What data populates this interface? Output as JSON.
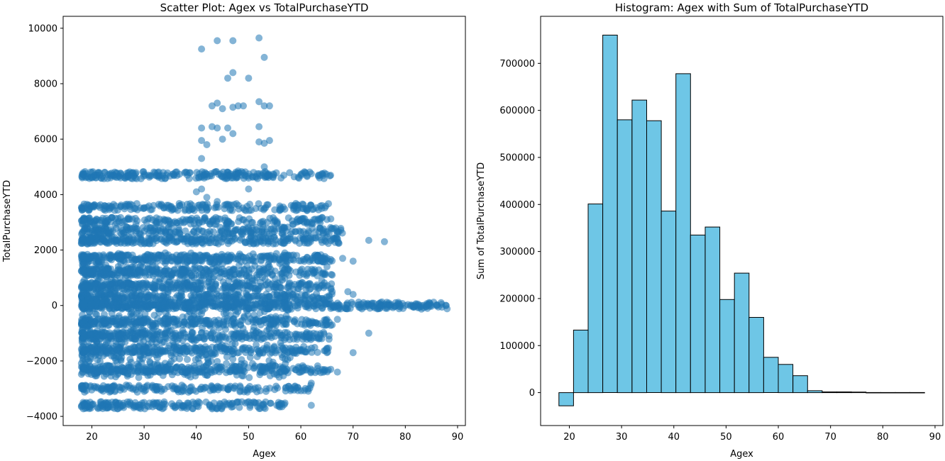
{
  "chart_data": [
    {
      "type": "scatter",
      "title": "Scatter Plot: Agex vs TotalPurchaseYTD",
      "xlabel": "Agex",
      "ylabel": "TotalPurchaseYTD",
      "xlim": [
        14.5,
        91.5
      ],
      "ylim": [
        -4330,
        10430
      ],
      "xticks": [
        20,
        30,
        40,
        50,
        60,
        70,
        80,
        90
      ],
      "yticks": [
        -4000,
        -2000,
        0,
        2000,
        4000,
        6000,
        8000,
        10000
      ],
      "marker_color": "#1f77b4",
      "marker_alpha": 0.55,
      "bands": [
        {
          "x0": 18,
          "x1": 66,
          "y": 4700,
          "density": 1.0
        },
        {
          "x0": 18,
          "x1": 66,
          "y": 3550,
          "density": 0.8
        },
        {
          "x0": 18,
          "x1": 66,
          "y": 3050,
          "density": 0.8
        },
        {
          "x0": 18,
          "x1": 68,
          "y": 2700,
          "density": 0.9
        },
        {
          "x0": 18,
          "x1": 68,
          "y": 2350,
          "density": 1.2
        },
        {
          "x0": 18,
          "x1": 66,
          "y": 1700,
          "density": 1.1
        },
        {
          "x0": 18,
          "x1": 66,
          "y": 1200,
          "density": 1.0
        },
        {
          "x0": 18,
          "x1": 66,
          "y": 700,
          "density": 1.0
        },
        {
          "x0": 18,
          "x1": 66,
          "y": 300,
          "density": 1.0
        },
        {
          "x0": 18,
          "x1": 88,
          "y": 0,
          "density": 1.4
        },
        {
          "x0": 18,
          "x1": 66,
          "y": -600,
          "density": 1.0
        },
        {
          "x0": 18,
          "x1": 66,
          "y": -1100,
          "density": 1.0
        },
        {
          "x0": 18,
          "x1": 66,
          "y": -1600,
          "density": 1.0
        },
        {
          "x0": 18,
          "x1": 66,
          "y": -2300,
          "density": 1.1
        },
        {
          "x0": 18,
          "x1": 62,
          "y": -3000,
          "density": 0.8
        },
        {
          "x0": 18,
          "x1": 57,
          "y": -3600,
          "density": 1.0
        }
      ],
      "points": [
        [
          41,
          9250
        ],
        [
          44,
          9550
        ],
        [
          47,
          9550
        ],
        [
          52,
          9650
        ],
        [
          53,
          8950
        ],
        [
          47,
          8400
        ],
        [
          46,
          8200
        ],
        [
          50,
          8200
        ],
        [
          43,
          7200
        ],
        [
          44,
          7300
        ],
        [
          45,
          7100
        ],
        [
          47,
          7150
        ],
        [
          48,
          7200
        ],
        [
          49,
          7200
        ],
        [
          52,
          7350
        ],
        [
          53,
          7200
        ],
        [
          54,
          7200
        ],
        [
          41,
          6400
        ],
        [
          43,
          6450
        ],
        [
          44,
          6400
        ],
        [
          46,
          6400
        ],
        [
          47,
          6200
        ],
        [
          52,
          6450
        ],
        [
          52,
          5900
        ],
        [
          53,
          5850
        ],
        [
          54,
          5950
        ],
        [
          41,
          5950
        ],
        [
          42,
          5800
        ],
        [
          45,
          6000
        ],
        [
          41,
          5300
        ],
        [
          47,
          4600
        ],
        [
          48,
          4850
        ],
        [
          50,
          4200
        ],
        [
          53,
          5000
        ],
        [
          40,
          4100
        ],
        [
          41,
          4200
        ],
        [
          42,
          3900
        ],
        [
          44,
          3750
        ],
        [
          62,
          4750
        ],
        [
          64,
          3500
        ],
        [
          55,
          3450
        ],
        [
          65,
          3100
        ],
        [
          67,
          2400
        ],
        [
          73,
          2350
        ],
        [
          76,
          2300
        ],
        [
          68,
          1700
        ],
        [
          70,
          1600
        ],
        [
          65,
          1400
        ],
        [
          66,
          1100
        ],
        [
          64,
          900
        ],
        [
          69,
          500
        ],
        [
          70,
          400
        ],
        [
          66,
          500
        ],
        [
          72,
          100
        ],
        [
          74,
          80
        ],
        [
          75,
          60
        ],
        [
          77,
          20
        ],
        [
          79,
          10
        ],
        [
          80,
          0
        ],
        [
          82,
          30
        ],
        [
          83,
          0
        ],
        [
          84,
          -40
        ],
        [
          85,
          -30
        ],
        [
          86,
          20
        ],
        [
          87,
          -60
        ],
        [
          88,
          -120
        ],
        [
          78,
          -30
        ],
        [
          81,
          -20
        ],
        [
          65,
          -500
        ],
        [
          67,
          -500
        ],
        [
          66,
          -700
        ],
        [
          73,
          -1000
        ],
        [
          64,
          -1200
        ],
        [
          65,
          -1700
        ],
        [
          70,
          -1700
        ],
        [
          62,
          -2800
        ],
        [
          67,
          -2400
        ],
        [
          62,
          -3600
        ]
      ]
    },
    {
      "type": "bar",
      "title": "Histogram: Agex with Sum of TotalPurchaseYTD",
      "xlabel": "Agex",
      "ylabel": "Sum of TotalPurchaseYTD",
      "xlim": [
        14.5,
        91.5
      ],
      "ylim": [
        -70000,
        800000
      ],
      "xticks": [
        20,
        30,
        40,
        50,
        60,
        70,
        80,
        90
      ],
      "yticks": [
        0,
        100000,
        200000,
        300000,
        400000,
        500000,
        600000,
        700000
      ],
      "bar_color": "#6ec6e6",
      "edge_color": "#000000",
      "bin_edges": [
        18,
        20.8,
        23.6,
        26.4,
        29.2,
        32,
        34.8,
        37.6,
        40.4,
        43.2,
        46,
        48.8,
        51.6,
        54.4,
        57.2,
        60,
        62.8,
        65.6,
        68.4,
        71.2,
        74,
        76.8,
        79.6,
        82.4,
        85.2,
        88
      ],
      "values": [
        -28000,
        133000,
        401000,
        760000,
        580000,
        622000,
        578000,
        386000,
        678000,
        335000,
        352000,
        198000,
        254000,
        160000,
        75000,
        60000,
        36000,
        4000,
        1500,
        1500,
        1200,
        300,
        200,
        200,
        200
      ]
    }
  ]
}
